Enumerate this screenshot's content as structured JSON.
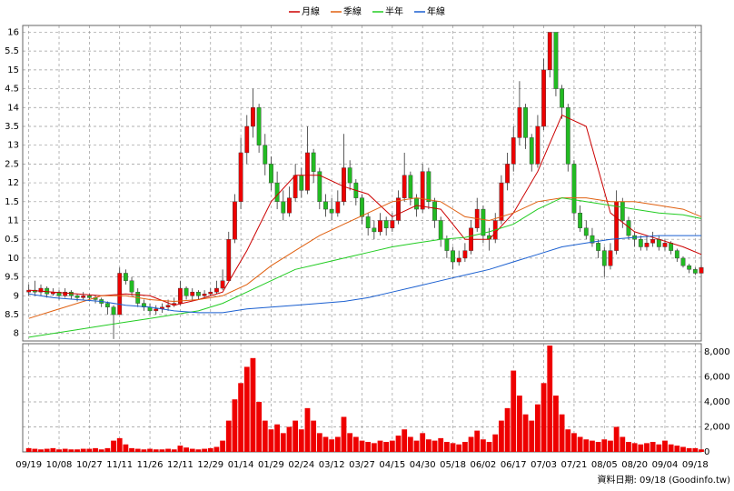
{
  "chart_data": {
    "type": "candlestick",
    "ma_series": [
      {
        "name": "月線",
        "color": "#cc0000",
        "x": [
          0,
          4,
          8,
          12,
          16,
          20,
          24,
          28,
          32,
          36,
          40,
          44,
          48,
          52,
          56,
          60,
          64,
          68,
          72,
          76,
          80,
          84,
          88,
          92,
          96,
          100,
          104,
          108,
          111
        ],
        "values": [
          9.15,
          9.1,
          9.05,
          9.0,
          9.05,
          9.0,
          8.75,
          8.9,
          9.1,
          10.2,
          11.5,
          12.2,
          12.2,
          11.9,
          11.7,
          11.1,
          11.4,
          11.3,
          10.5,
          10.5,
          11.2,
          12.3,
          13.8,
          13.5,
          11.2,
          10.7,
          10.5,
          10.3,
          10.1
        ]
      },
      {
        "name": "季線",
        "color": "#e06010",
        "x": [
          0,
          4,
          8,
          12,
          16,
          20,
          24,
          28,
          32,
          36,
          40,
          44,
          48,
          52,
          56,
          60,
          64,
          68,
          72,
          76,
          80,
          84,
          88,
          92,
          96,
          100,
          104,
          108,
          111
        ],
        "values": [
          8.4,
          8.6,
          8.8,
          9.0,
          9.0,
          8.9,
          8.85,
          8.9,
          9.0,
          9.3,
          9.8,
          10.2,
          10.6,
          10.9,
          11.2,
          11.5,
          11.6,
          11.5,
          11.1,
          11.0,
          11.2,
          11.5,
          11.6,
          11.6,
          11.5,
          11.5,
          11.4,
          11.3,
          11.1
        ]
      },
      {
        "name": "半年",
        "color": "#22cc22",
        "x": [
          0,
          4,
          8,
          12,
          16,
          20,
          24,
          28,
          32,
          36,
          40,
          44,
          48,
          52,
          56,
          60,
          64,
          68,
          72,
          76,
          80,
          84,
          88,
          92,
          96,
          100,
          104,
          108,
          111
        ],
        "values": [
          7.9,
          8.0,
          8.1,
          8.2,
          8.3,
          8.4,
          8.5,
          8.6,
          8.8,
          9.1,
          9.4,
          9.7,
          9.85,
          10.0,
          10.15,
          10.3,
          10.4,
          10.5,
          10.55,
          10.7,
          10.9,
          11.3,
          11.6,
          11.5,
          11.4,
          11.3,
          11.2,
          11.15,
          11.05
        ]
      },
      {
        "name": "年線",
        "color": "#1a5fd0",
        "x": [
          0,
          4,
          8,
          12,
          16,
          20,
          24,
          28,
          32,
          36,
          40,
          44,
          48,
          52,
          56,
          60,
          64,
          68,
          72,
          76,
          80,
          84,
          88,
          92,
          96,
          100,
          104,
          108,
          111
        ],
        "values": [
          9.05,
          8.95,
          8.9,
          8.85,
          8.75,
          8.7,
          8.6,
          8.55,
          8.55,
          8.65,
          8.7,
          8.75,
          8.8,
          8.85,
          8.95,
          9.1,
          9.25,
          9.4,
          9.55,
          9.7,
          9.9,
          10.1,
          10.3,
          10.4,
          10.5,
          10.55,
          10.6,
          10.6,
          10.6
        ]
      }
    ],
    "open": [
      9.1,
      9.15,
      9.1,
      9.2,
      9.05,
      9.1,
      9.0,
      9.1,
      9.0,
      8.95,
      9.0,
      8.95,
      8.9,
      8.8,
      8.7,
      8.5,
      9.6,
      9.4,
      9.1,
      8.8,
      8.7,
      8.6,
      8.65,
      8.7,
      8.75,
      8.8,
      9.2,
      9.0,
      9.1,
      9.0,
      9.05,
      9.1,
      9.2,
      9.4,
      10.5,
      11.5,
      12.8,
      13.5,
      14.0,
      13.0,
      12.5,
      12.0,
      11.5,
      11.2,
      11.6,
      12.2,
      11.8,
      12.8,
      12.3,
      11.5,
      11.3,
      11.2,
      11.5,
      12.4,
      12.0,
      11.6,
      11.1,
      10.8,
      10.7,
      11.0,
      10.8,
      11.0,
      11.6,
      12.2,
      11.6,
      11.3,
      12.3,
      11.5,
      11.0,
      10.5,
      10.2,
      9.9,
      10.0,
      10.2,
      10.8,
      11.3,
      10.6,
      10.5,
      11.0,
      12.0,
      12.5,
      13.2,
      14.0,
      13.2,
      12.5,
      13.5,
      15.0,
      16.0,
      14.5,
      14.0,
      12.5,
      11.2,
      10.8,
      10.6,
      10.4,
      10.2,
      9.8,
      10.2,
      11.5,
      11.0,
      10.6,
      10.5,
      10.3,
      10.4,
      10.5,
      10.3,
      10.4,
      10.2,
      10.0,
      9.8,
      9.7,
      9.6
    ],
    "high": [
      9.3,
      9.4,
      9.3,
      9.25,
      9.2,
      9.15,
      9.2,
      9.15,
      9.05,
      9.1,
      9.05,
      9.0,
      8.95,
      8.85,
      8.75,
      9.75,
      9.7,
      9.5,
      9.2,
      8.9,
      8.8,
      8.75,
      8.8,
      8.9,
      8.95,
      9.4,
      9.25,
      9.2,
      9.15,
      9.15,
      9.2,
      9.4,
      9.7,
      10.7,
      11.7,
      13.2,
      13.8,
      14.5,
      14.1,
      13.3,
      12.7,
      12.3,
      11.8,
      11.9,
      12.5,
      12.4,
      13.5,
      12.9,
      12.4,
      11.7,
      11.6,
      11.8,
      13.3,
      12.6,
      12.1,
      11.7,
      11.2,
      11.0,
      11.2,
      11.1,
      11.2,
      11.8,
      12.8,
      12.3,
      11.7,
      12.5,
      12.4,
      11.6,
      11.1,
      10.6,
      10.3,
      10.2,
      10.4,
      11.0,
      11.6,
      11.4,
      10.8,
      11.2,
      12.2,
      12.8,
      13.5,
      14.7,
      14.1,
      13.3,
      13.8,
      15.3,
      16.0,
      16.0,
      14.6,
      14.1,
      12.6,
      11.4,
      11.0,
      10.8,
      10.5,
      10.3,
      10.4,
      11.8,
      11.6,
      11.1,
      10.7,
      10.6,
      10.6,
      10.7,
      10.6,
      10.5,
      10.45,
      10.25,
      10.05,
      9.85,
      9.75,
      9.8
    ],
    "low": [
      9.0,
      9.0,
      9.0,
      8.95,
      9.0,
      8.9,
      8.95,
      8.9,
      8.85,
      8.9,
      8.85,
      8.8,
      8.7,
      8.5,
      7.85,
      8.5,
      9.3,
      9.0,
      8.7,
      8.6,
      8.5,
      8.5,
      8.55,
      8.6,
      8.7,
      8.75,
      8.9,
      8.9,
      8.9,
      8.95,
      9.0,
      9.05,
      9.15,
      9.4,
      10.4,
      11.3,
      12.5,
      13.2,
      12.8,
      12.2,
      11.8,
      11.3,
      11.0,
      11.1,
      11.5,
      11.6,
      11.7,
      12.0,
      11.3,
      11.1,
      11.0,
      11.1,
      11.4,
      11.8,
      11.4,
      10.9,
      10.6,
      10.5,
      10.6,
      10.6,
      10.7,
      10.9,
      11.5,
      11.4,
      11.1,
      11.2,
      11.3,
      10.8,
      10.3,
      10.0,
      9.7,
      9.8,
      9.9,
      10.1,
      10.7,
      10.4,
      10.2,
      10.4,
      10.9,
      11.8,
      12.3,
      13.0,
      12.9,
      12.3,
      12.4,
      13.4,
      14.8,
      14.3,
      13.7,
      12.3,
      11.0,
      10.7,
      10.5,
      10.3,
      10.0,
      9.5,
      9.7,
      10.1,
      10.8,
      10.5,
      10.3,
      10.2,
      10.2,
      10.3,
      10.2,
      10.2,
      10.1,
      9.9,
      9.75,
      9.6,
      9.55,
      9.6
    ],
    "close": [
      9.15,
      9.1,
      9.2,
      9.05,
      9.1,
      9.0,
      9.1,
      9.0,
      8.95,
      9.0,
      8.95,
      8.9,
      8.8,
      8.7,
      8.5,
      9.6,
      9.4,
      9.1,
      8.8,
      8.7,
      8.6,
      8.65,
      8.7,
      8.75,
      8.8,
      9.2,
      9.0,
      9.1,
      9.0,
      9.05,
      9.1,
      9.2,
      9.4,
      10.5,
      11.5,
      12.8,
      13.5,
      14.0,
      13.0,
      12.5,
      12.0,
      11.5,
      11.2,
      11.6,
      12.2,
      11.8,
      12.8,
      12.3,
      11.5,
      11.3,
      11.2,
      11.5,
      12.4,
      12.0,
      11.6,
      11.1,
      10.8,
      10.7,
      11.0,
      10.8,
      11.0,
      11.6,
      12.2,
      11.6,
      11.3,
      12.3,
      11.5,
      11.0,
      10.5,
      10.2,
      9.9,
      10.0,
      10.2,
      10.8,
      11.3,
      10.6,
      10.5,
      11.0,
      12.0,
      12.5,
      13.2,
      14.0,
      13.2,
      12.5,
      13.5,
      15.0,
      16.0,
      14.5,
      14.0,
      12.5,
      11.2,
      10.8,
      10.6,
      10.4,
      10.2,
      9.8,
      10.2,
      11.5,
      11.0,
      10.6,
      10.5,
      10.3,
      10.4,
      10.5,
      10.3,
      10.4,
      10.2,
      10.0,
      9.8,
      9.7,
      9.6,
      9.75
    ],
    "volume": [
      300,
      250,
      200,
      250,
      300,
      200,
      250,
      200,
      200,
      250,
      250,
      300,
      200,
      300,
      900,
      1100,
      600,
      300,
      250,
      200,
      250,
      200,
      200,
      250,
      200,
      500,
      350,
      250,
      200,
      250,
      300,
      400,
      900,
      2500,
      4200,
      5500,
      6800,
      7500,
      4000,
      2500,
      1800,
      2200,
      1500,
      2000,
      2500,
      1800,
      3500,
      2500,
      1500,
      1200,
      1000,
      1200,
      2800,
      1500,
      1200,
      900,
      800,
      700,
      900,
      800,
      900,
      1300,
      1800,
      1200,
      900,
      1500,
      1000,
      900,
      1100,
      800,
      700,
      600,
      800,
      1200,
      1700,
      1000,
      800,
      1400,
      2500,
      3500,
      6500,
      4500,
      3000,
      2500,
      3800,
      5500,
      8500,
      4500,
      3000,
      1800,
      1500,
      1200,
      1000,
      900,
      800,
      1000,
      900,
      2000,
      1200,
      800,
      700,
      600,
      700,
      800,
      600,
      900,
      600,
      500,
      400,
      300,
      300,
      200
    ],
    "up_color": "#ee0000",
    "down_color": "#22bb22",
    "volume_color": "#ee0000",
    "xlim": [
      -1,
      111
    ],
    "xticks": [
      {
        "value": 0,
        "label": "09/19"
      },
      {
        "value": 5,
        "label": "10/08"
      },
      {
        "value": 10,
        "label": "10/27"
      },
      {
        "value": 15,
        "label": "11/11"
      },
      {
        "value": 20,
        "label": "11/26"
      },
      {
        "value": 25,
        "label": "12/11"
      },
      {
        "value": 30,
        "label": "12/29"
      },
      {
        "value": 35,
        "label": "01/14"
      },
      {
        "value": 40,
        "label": "01/29"
      },
      {
        "value": 45,
        "label": "02/24"
      },
      {
        "value": 50,
        "label": "03/12"
      },
      {
        "value": 55,
        "label": "03/27"
      },
      {
        "value": 60,
        "label": "04/15"
      },
      {
        "value": 65,
        "label": "04/30"
      },
      {
        "value": 70,
        "label": "05/18"
      },
      {
        "value": 75,
        "label": "06/02"
      },
      {
        "value": 80,
        "label": "06/17"
      },
      {
        "value": 85,
        "label": "07/03"
      },
      {
        "value": 90,
        "label": "07/21"
      },
      {
        "value": 95,
        "label": "08/05"
      },
      {
        "value": 100,
        "label": "08/20"
      },
      {
        "value": 105,
        "label": "09/04"
      },
      {
        "value": 110,
        "label": "09/18"
      }
    ],
    "ylim": [
      7.8,
      16.18
    ],
    "yticks": [
      16,
      {
        "value": 15.5,
        "label": "5.5"
      },
      15,
      {
        "value": 14.5,
        "label": "4.5"
      },
      14,
      {
        "value": 13.5,
        "label": "3.5"
      },
      13,
      {
        "value": 12.5,
        "label": "2.5"
      },
      12,
      {
        "value": 11.5,
        "label": "1.5"
      },
      11,
      {
        "value": 10.5,
        "label": "0.5"
      },
      10,
      9.5,
      9,
      8.5,
      8
    ],
    "y2lim": [
      0,
      8650
    ],
    "y2ticks": [
      0,
      {
        "value": 2000,
        "label": "2,000"
      },
      {
        "value": 4000,
        "label": "4,000"
      },
      {
        "value": 6000,
        "label": "6,000"
      },
      {
        "value": 8000,
        "label": "8,000"
      }
    ],
    "grid": true,
    "footer": "資料日期: 09/18 (Goodinfo.tw)"
  }
}
